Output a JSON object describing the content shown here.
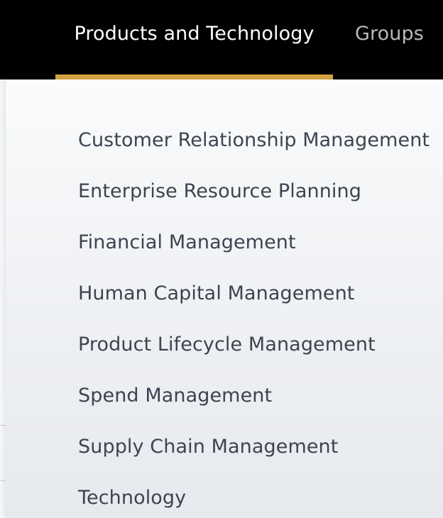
{
  "nav": {
    "active_tab": "Products and Technology",
    "groups_tab": "Groups"
  },
  "colors": {
    "topbar": "#000000",
    "active_underline": "#d6a343",
    "menu_text": "#3d4450"
  },
  "menu": {
    "items": [
      "Customer Relationship Management",
      "Enterprise Resource Planning",
      "Financial Management",
      "Human Capital Management",
      "Product Lifecycle Management",
      "Spend Management",
      "Supply Chain Management",
      "Technology"
    ]
  }
}
